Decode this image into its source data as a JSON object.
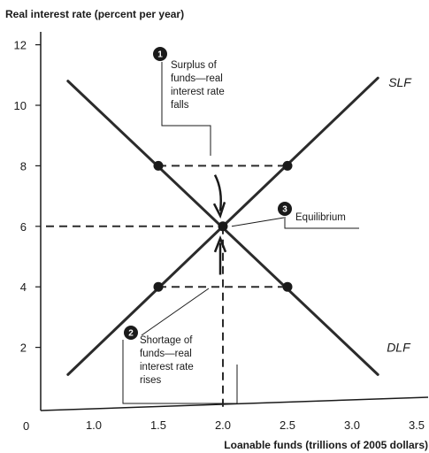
{
  "chart_data": {
    "type": "line",
    "ylabel": "Real interest rate (percent per year)",
    "xlabel": "Loanable funds (trillions of 2005 dollars)",
    "xlim": [
      0.75,
      3.6
    ],
    "ylim": [
      0,
      12.5
    ],
    "x_ticks": [
      {
        "value": 1.0,
        "label": "1.0"
      },
      {
        "value": 1.5,
        "label": "1.5"
      },
      {
        "value": 2.0,
        "label": "2.0"
      },
      {
        "value": 2.5,
        "label": "2.5"
      },
      {
        "value": 3.0,
        "label": "3.0"
      },
      {
        "value": 3.5,
        "label": "3.5"
      }
    ],
    "y_ticks": [
      {
        "value": 2,
        "label": "2"
      },
      {
        "value": 4,
        "label": "4"
      },
      {
        "value": 6,
        "label": "6"
      },
      {
        "value": 8,
        "label": "8"
      },
      {
        "value": 10,
        "label": "10"
      },
      {
        "value": 12,
        "label": "12"
      }
    ],
    "origin_label": "0",
    "series": [
      {
        "name": "SLF",
        "points": [
          [
            0.8,
            1.1
          ],
          [
            3.2,
            10.9
          ]
        ]
      },
      {
        "name": "DLF",
        "points": [
          [
            0.8,
            10.8
          ],
          [
            3.2,
            1.1
          ]
        ]
      }
    ],
    "key_points": [
      {
        "x": 1.5,
        "y": 8
      },
      {
        "x": 2.5,
        "y": 8
      },
      {
        "x": 2.0,
        "y": 6
      },
      {
        "x": 1.5,
        "y": 4
      },
      {
        "x": 2.5,
        "y": 4
      }
    ],
    "annotations": [
      {
        "number": "1",
        "lines": [
          "Surplus of",
          "funds—real",
          "interest rate",
          "falls"
        ]
      },
      {
        "number": "2",
        "lines": [
          "Shortage of",
          "funds—real",
          "interest rate",
          "rises"
        ]
      },
      {
        "number": "3",
        "lines": [
          "Equilibrium"
        ]
      }
    ]
  }
}
